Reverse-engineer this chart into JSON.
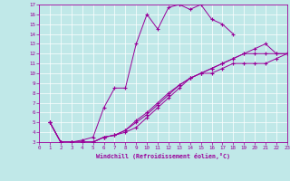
{
  "xlabel": "Windchill (Refroidissement éolien,°C)",
  "bg_color": "#c0e8e8",
  "line_color": "#990099",
  "xlim": [
    0,
    23
  ],
  "ylim": [
    3,
    17
  ],
  "yticks": [
    3,
    4,
    5,
    6,
    7,
    8,
    9,
    10,
    11,
    12,
    13,
    14,
    15,
    16,
    17
  ],
  "xticks": [
    0,
    1,
    2,
    3,
    4,
    5,
    6,
    7,
    8,
    9,
    10,
    11,
    12,
    13,
    14,
    15,
    16,
    17,
    18,
    19,
    20,
    21,
    22,
    23
  ],
  "series": [
    {
      "x": [
        1,
        2,
        3,
        4,
        5,
        6,
        7,
        8,
        9,
        10,
        11,
        12,
        13,
        14,
        15,
        16,
        17,
        18
      ],
      "y": [
        5,
        3,
        3,
        3.2,
        3.5,
        6.5,
        8.5,
        8.5,
        13,
        16,
        14.5,
        16.7,
        17,
        16.5,
        17,
        15.5,
        15,
        14
      ]
    },
    {
      "x": [
        1,
        2,
        3,
        4,
        5,
        6,
        7,
        8,
        9,
        10,
        11,
        12,
        13,
        14,
        15,
        16,
        17,
        18,
        19,
        20,
        21,
        22,
        23
      ],
      "y": [
        5,
        3,
        3,
        3,
        3,
        3.5,
        3.7,
        4.0,
        4.5,
        5.5,
        6.5,
        7.5,
        8.5,
        9.5,
        10,
        10,
        10.5,
        11,
        11,
        11,
        11,
        11.5,
        12
      ]
    },
    {
      "x": [
        1,
        2,
        3,
        4,
        5,
        6,
        7,
        8,
        9,
        10,
        11,
        12,
        13,
        14,
        15,
        16,
        17,
        18,
        19,
        20,
        21,
        22,
        23
      ],
      "y": [
        5,
        3,
        3,
        3,
        3,
        3.5,
        3.7,
        4.2,
        5.0,
        5.8,
        6.8,
        7.8,
        8.8,
        9.5,
        10,
        10.5,
        11,
        11.5,
        12,
        12.5,
        13,
        12,
        12
      ]
    },
    {
      "x": [
        1,
        2,
        3,
        4,
        5,
        6,
        7,
        8,
        9,
        10,
        11,
        12,
        13,
        14,
        15,
        16,
        17,
        18,
        19,
        20,
        21,
        22,
        23
      ],
      "y": [
        5,
        3,
        3,
        3,
        3,
        3.5,
        3.7,
        4.2,
        5.2,
        6,
        7,
        8,
        8.8,
        9.5,
        10,
        10.5,
        11,
        11.5,
        12,
        12,
        12,
        12,
        12
      ]
    }
  ]
}
